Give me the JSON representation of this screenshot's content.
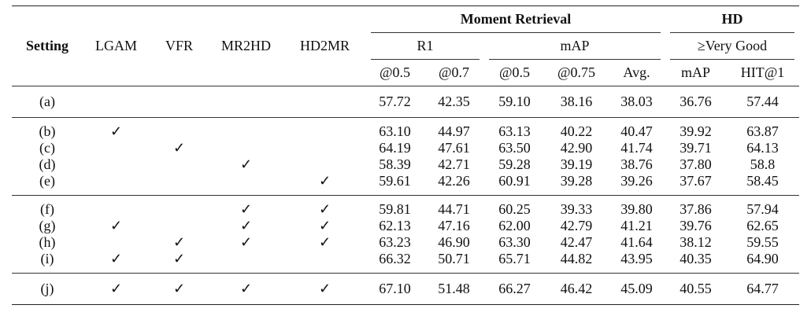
{
  "header": {
    "setting": "Setting",
    "lgam": "LGAM",
    "vfr": "VFR",
    "mr2hd": "MR2HD",
    "hd2mr": "HD2MR",
    "moment_retrieval": "Moment Retrieval",
    "hd": "HD",
    "r1": "R1",
    "map": "mAP",
    "very_good": "≥Very Good",
    "sub": [
      "@0.5",
      "@0.7",
      "@0.5",
      "@0.75",
      "Avg.",
      "mAP",
      "HIT@1"
    ]
  },
  "check_mark": "✓",
  "rows": [
    {
      "setting": "(a)",
      "lgam": "",
      "vfr": "",
      "mr2hd": "",
      "hd2mr": "",
      "values": [
        "57.72",
        "42.35",
        "59.10",
        "38.16",
        "38.03",
        "36.76",
        "57.44"
      ]
    },
    {
      "setting": "(b)",
      "lgam": "✓",
      "vfr": "",
      "mr2hd": "",
      "hd2mr": "",
      "values": [
        "63.10",
        "44.97",
        "63.13",
        "40.22",
        "40.47",
        "39.92",
        "63.87"
      ]
    },
    {
      "setting": "(c)",
      "lgam": "",
      "vfr": "✓",
      "mr2hd": "",
      "hd2mr": "",
      "values": [
        "64.19",
        "47.61",
        "63.50",
        "42.90",
        "41.74",
        "39.71",
        "64.13"
      ]
    },
    {
      "setting": "(d)",
      "lgam": "",
      "vfr": "",
      "mr2hd": "✓",
      "hd2mr": "",
      "values": [
        "58.39",
        "42.71",
        "59.28",
        "39.19",
        "38.76",
        "37.80",
        "58.8"
      ]
    },
    {
      "setting": "(e)",
      "lgam": "",
      "vfr": "",
      "mr2hd": "",
      "hd2mr": "✓",
      "values": [
        "59.61",
        "42.26",
        "60.91",
        "39.28",
        "39.26",
        "37.67",
        "58.45"
      ]
    },
    {
      "setting": "(f)",
      "lgam": "",
      "vfr": "",
      "mr2hd": "✓",
      "hd2mr": "✓",
      "values": [
        "59.81",
        "44.71",
        "60.25",
        "39.33",
        "39.80",
        "37.86",
        "57.94"
      ]
    },
    {
      "setting": "(g)",
      "lgam": "✓",
      "vfr": "",
      "mr2hd": "✓",
      "hd2mr": "✓",
      "values": [
        "62.13",
        "47.16",
        "62.00",
        "42.79",
        "41.21",
        "39.76",
        "62.65"
      ]
    },
    {
      "setting": "(h)",
      "lgam": "",
      "vfr": "✓",
      "mr2hd": "✓",
      "hd2mr": "✓",
      "values": [
        "63.23",
        "46.90",
        "63.30",
        "42.47",
        "41.64",
        "38.12",
        "59.55"
      ]
    },
    {
      "setting": "(i)",
      "lgam": "✓",
      "vfr": "✓",
      "mr2hd": "",
      "hd2mr": "",
      "values": [
        "66.32",
        "50.71",
        "65.71",
        "44.82",
        "43.95",
        "40.35",
        "64.90"
      ]
    },
    {
      "setting": "(j)",
      "lgam": "✓",
      "vfr": "✓",
      "mr2hd": "✓",
      "hd2mr": "✓",
      "values": [
        "67.10",
        "51.48",
        "66.27",
        "46.42",
        "45.09",
        "40.55",
        "64.77"
      ]
    }
  ]
}
